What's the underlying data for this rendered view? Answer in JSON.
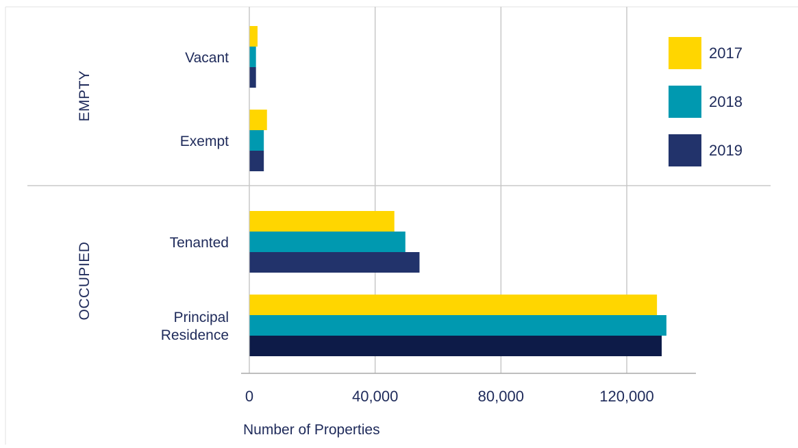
{
  "chart_data": {
    "type": "bar",
    "orientation": "horizontal",
    "xlabel": "Number of Properties",
    "xlim": [
      0,
      140000
    ],
    "xticks": [
      0,
      40000,
      80000,
      120000
    ],
    "xtick_labels": [
      "0",
      "40,000",
      "80,000",
      "120,000"
    ],
    "grid": true,
    "legend_position": "top-right",
    "groups": [
      {
        "label": "EMPTY",
        "categories": [
          "Vacant",
          "Exempt"
        ]
      },
      {
        "label": "OCCUPIED",
        "categories": [
          "Tenanted",
          "Principal Residence"
        ]
      }
    ],
    "categories": [
      "Vacant",
      "Exempt",
      "Tenanted",
      "Principal Residence"
    ],
    "category_lines": [
      [
        "Vacant"
      ],
      [
        "Exempt"
      ],
      [
        "Tenanted"
      ],
      [
        "Principal",
        "Residence"
      ]
    ],
    "series": [
      {
        "name": "2017",
        "color": "#ffd600",
        "values": [
          2500,
          5500,
          46000,
          129500
        ]
      },
      {
        "name": "2018",
        "color": "#0099b0",
        "values": [
          2000,
          4500,
          49500,
          132500
        ]
      },
      {
        "name": "2019",
        "color": "#22336b",
        "values": [
          2000,
          4500,
          54000,
          131000
        ]
      }
    ],
    "highlight": {
      "series": "2019",
      "category": "Principal Residence",
      "color": "#0d1b48"
    }
  }
}
